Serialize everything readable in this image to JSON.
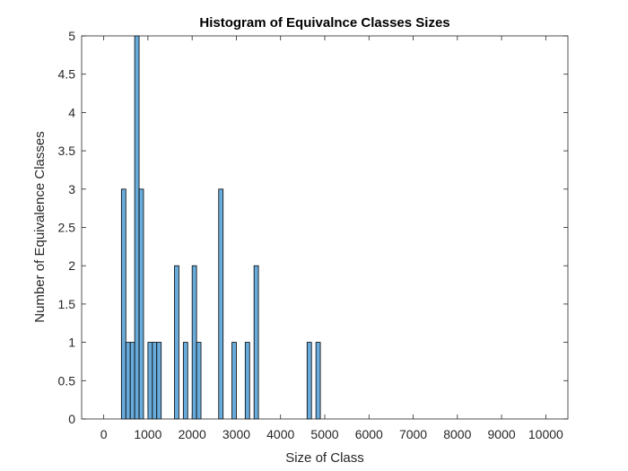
{
  "chart_data": {
    "type": "bar",
    "title": "Histogram of Equivalnce Classes Sizes",
    "xlabel": "Size of Class",
    "ylabel": "Number of Equivalence Classes",
    "xlim": [
      -500,
      10500
    ],
    "ylim": [
      0,
      5
    ],
    "xticks": [
      0,
      1000,
      2000,
      3000,
      4000,
      5000,
      6000,
      7000,
      8000,
      9000,
      10000
    ],
    "yticks": [
      0,
      0.5,
      1,
      1.5,
      2,
      2.5,
      3,
      3.5,
      4,
      4.5,
      5
    ],
    "bin_width": 100,
    "bar_color": "#4f9ed6",
    "grid": false,
    "bins": [
      {
        "start": 400,
        "count": 3
      },
      {
        "start": 500,
        "count": 1
      },
      {
        "start": 600,
        "count": 1
      },
      {
        "start": 700,
        "count": 5
      },
      {
        "start": 800,
        "count": 3
      },
      {
        "start": 1000,
        "count": 1
      },
      {
        "start": 1100,
        "count": 1
      },
      {
        "start": 1200,
        "count": 1
      },
      {
        "start": 1600,
        "count": 2
      },
      {
        "start": 1800,
        "count": 1
      },
      {
        "start": 2000,
        "count": 2
      },
      {
        "start": 2100,
        "count": 1
      },
      {
        "start": 2600,
        "count": 3
      },
      {
        "start": 2900,
        "count": 1
      },
      {
        "start": 3200,
        "count": 1
      },
      {
        "start": 3400,
        "count": 2
      },
      {
        "start": 4600,
        "count": 1
      },
      {
        "start": 4800,
        "count": 1
      }
    ]
  }
}
